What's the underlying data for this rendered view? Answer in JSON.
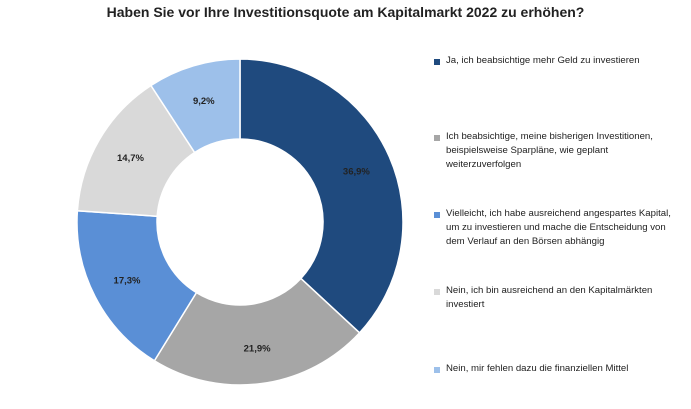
{
  "chart_data": {
    "type": "pie",
    "variant": "donut",
    "title": "Haben Sie vor Ihre Investitionsquote am Kapitalmarkt 2022 zu erhöhen?",
    "legend_position": "right",
    "series": [
      {
        "name": "Ja, ich beabsichtige mehr Geld zu investieren",
        "value": 36.9,
        "label": "36,9%",
        "color": "#1f4a7e"
      },
      {
        "name": "Ich beabsichtige, meine bisherigen Investitionen, beispielsweise Sparpläne, wie geplant weiterzuverfolgen",
        "value": 21.9,
        "label": "21,9%",
        "color": "#a6a6a6"
      },
      {
        "name": "Vielleicht, ich habe ausreichend angespartes Kapital, um zu investieren und mache die Entscheidung von dem Verlauf an den Börsen abhängig",
        "value": 17.3,
        "label": "17,3%",
        "color": "#5a8fd6"
      },
      {
        "name": "Nein, ich bin ausreichend an den Kapitalmärkten investiert",
        "value": 14.7,
        "label": "14,7%",
        "color": "#d9d9d9"
      },
      {
        "name": "Nein, mir fehlen dazu die finanziellen Mittel",
        "value": 9.2,
        "label": "9,2%",
        "color": "#9dc0ea"
      }
    ]
  }
}
